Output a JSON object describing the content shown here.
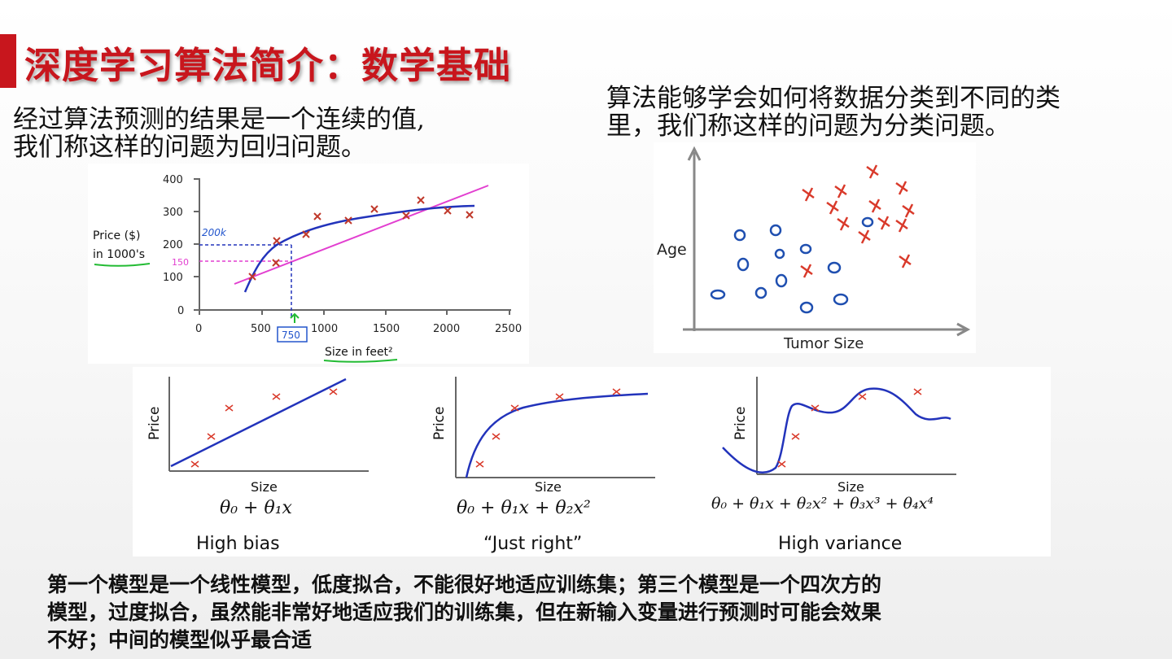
{
  "slide": {
    "title": "深度学习算法简介：数学基础",
    "regression_text_1": "经过算法预测的结果是一个连续的值,",
    "regression_text_2": "我们称这样的问题为回归问题。",
    "classification_text_1": "算法能够学会如何将数据分类到不同的类",
    "classification_text_2": "里，我们称这样的问题为分类问题。",
    "bottom_text_1": "第一个模型是一个线性模型，低度拟合，不能很好地适应训练集；第三个模型是一个四次方的",
    "bottom_text_2": "模型，过度拟合，虽然能非常好地适应我们的训练集，但在新输入变量进行预测时可能会效果",
    "bottom_text_3": "不好；中间的模型似乎最合适"
  },
  "regression_chart": {
    "ylabel_1": "Price ($)",
    "ylabel_2": "in 1000's",
    "xlabel": "Size in feet²",
    "y_ticks": [
      "400",
      "300",
      "200",
      "100",
      "0"
    ],
    "x_ticks": [
      "0",
      "500",
      "1000",
      "1500",
      "2000",
      "2500"
    ],
    "annotation_200k": "200k",
    "annotation_150": "150",
    "annotation_750": "750",
    "colors": {
      "curve": "#2233bb",
      "line": "#e23fd0",
      "points": "#c0392b",
      "annotation": "#2255cc",
      "underline": "#22bb33"
    }
  },
  "classification_chart": {
    "ylabel": "Age",
    "xlabel": "Tumor Size",
    "colors": {
      "o": "#1f4fb0",
      "x": "#d93a2b"
    }
  },
  "fits": {
    "xlabel": "Size",
    "ylabel": "Price",
    "panels": [
      {
        "caption": "High bias",
        "formula": "θ₀ + θ₁x"
      },
      {
        "caption": "“Just right”",
        "formula": "θ₀ + θ₁x + θ₂x²"
      },
      {
        "caption": "High variance",
        "formula": "θ₀ + θ₁x + θ₂x² + θ₃x³ + θ₄x⁴"
      }
    ]
  }
}
